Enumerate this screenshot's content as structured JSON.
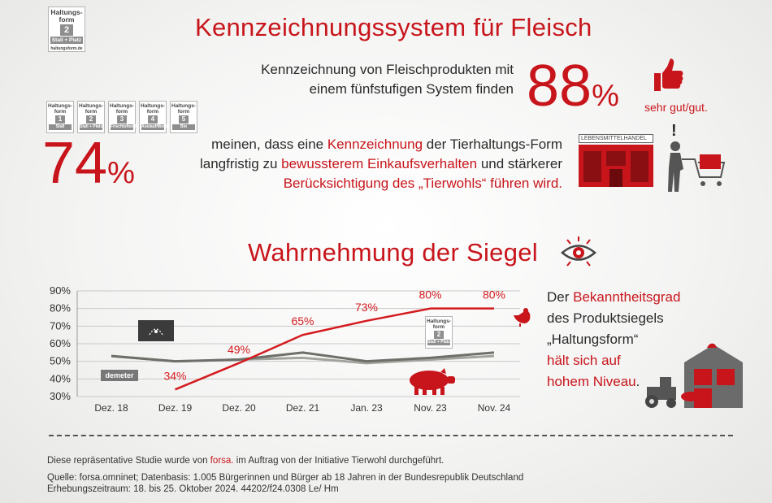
{
  "header": {
    "title": "Kennzeichnungssystem für Fleisch",
    "badge": {
      "line1": "Haltungs-",
      "line2": "form",
      "num": "2",
      "label": "Stall + Platz",
      "site": "haltungsform.de"
    }
  },
  "stat88": {
    "line1": "Kennzeichnung von Fleischprodukten mit",
    "line2": "einem fünfstufigen System finden",
    "value": "88",
    "symbol": "%",
    "suffix": "sehr gut/gut."
  },
  "stat74": {
    "value": "74",
    "symbol": "%",
    "line1_a": "meinen, dass eine ",
    "line1_b": "Kennzeichnung",
    "line1_c": " der Tierhaltungs-Form",
    "line2_a": "langfristig zu ",
    "line2_b": "bewussterem Einkaufsverhalten",
    "line2_c": " und stärkerer",
    "line3": "Berücksichtigung des „Tierwohls“ führen wird.",
    "badges": [
      {
        "line1": "Haltungs-",
        "line2": "form",
        "num": "1",
        "label": "Stall"
      },
      {
        "line1": "Haltungs-",
        "line2": "form",
        "num": "2",
        "label": "Stall + Platz"
      },
      {
        "line1": "Haltungs-",
        "line2": "form",
        "num": "3",
        "label": "Frischluftstall"
      },
      {
        "line1": "Haltungs-",
        "line2": "form",
        "num": "4",
        "label": "Auslauf/Weide"
      },
      {
        "line1": "Haltungs-",
        "line2": "form",
        "num": "5",
        "label": "Bio"
      }
    ],
    "store_sign": "LEBENSMITTELHANDEL",
    "exclaim": "!"
  },
  "section2": {
    "title": "Wahrnehmung der Siegel",
    "icon": "eye-icon"
  },
  "chart_data": {
    "type": "line",
    "categories": [
      "Dez. 18",
      "Dez. 19",
      "Dez. 20",
      "Dez. 21",
      "Jan. 23",
      "Nov. 23",
      "Nov. 24"
    ],
    "ylim": [
      30,
      90
    ],
    "yticks": [
      "90%",
      "80%",
      "70%",
      "60%",
      "50%",
      "40%",
      "30%"
    ],
    "grid": true,
    "series": [
      {
        "name": "Haltungsform",
        "color": "#d41b1f",
        "values": [
          null,
          34,
          49,
          65,
          73,
          80,
          80
        ],
        "labels": [
          "",
          "34%",
          "49%",
          "65%",
          "73%",
          "80%",
          "80%"
        ]
      },
      {
        "name": "Bio",
        "color": "#6f6f6a",
        "values": [
          53,
          50,
          51,
          55,
          50,
          52,
          55
        ]
      },
      {
        "name": "demeter",
        "color": "#a3a39e",
        "values": [
          53,
          50,
          51,
          52,
          49,
          51,
          53
        ]
      }
    ],
    "legend_labels": {
      "demeter": "demeter",
      "bio": "EU-Bio-Logo",
      "haltungsform": "Haltungs-form 2 Stall + Platz"
    }
  },
  "right_text": {
    "l1_a": "Der ",
    "l1_b": "Bekanntheitsgrad",
    "l2": "des Produktsiegels",
    "l3": "„Haltungsform“",
    "l4": "hält sich auf",
    "l5": "hohem Niveau",
    "l5_end": "."
  },
  "footer": {
    "l1_a": "Diese repräsentative Studie wurde von ",
    "l1_b": "forsa.",
    "l1_c": " im Auftrag von der Initiative Tierwohl durchgeführt.",
    "l2": "Quelle: forsa.omninet; Datenbasis: 1.005 Bürgerinnen und Bürger ab 18 Jahren in der Bundesrepublik Deutschland",
    "l3": "Erhebungszeitraum: 18. bis 25. Oktober 2024. 44202/f24.0308 Le/ Hm"
  },
  "colors": {
    "accent": "#c8151b",
    "grey": "#6f6f6a"
  }
}
